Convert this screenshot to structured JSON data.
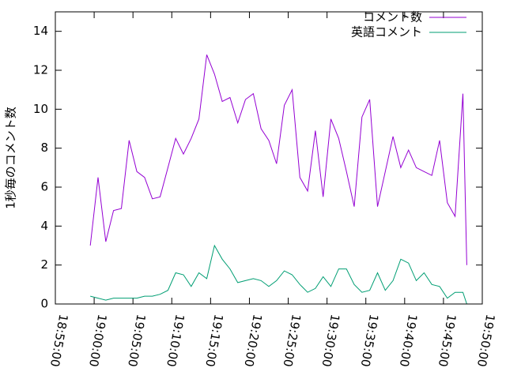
{
  "chart_data": {
    "type": "line",
    "ylabel": "1秒毎のコメント数",
    "x": [
      "18:59:30",
      "19:00:30",
      "19:01:30",
      "19:02:30",
      "19:03:30",
      "19:04:30",
      "19:05:30",
      "19:06:30",
      "19:07:30",
      "19:08:30",
      "19:09:30",
      "19:10:30",
      "19:11:30",
      "19:12:30",
      "19:13:30",
      "19:14:30",
      "19:15:30",
      "19:16:30",
      "19:17:30",
      "19:18:30",
      "19:19:30",
      "19:20:30",
      "19:21:30",
      "19:22:30",
      "19:23:30",
      "19:24:30",
      "19:25:30",
      "19:26:30",
      "19:27:30",
      "19:28:30",
      "19:29:30",
      "19:30:30",
      "19:31:30",
      "19:32:30",
      "19:33:30",
      "19:34:30",
      "19:35:30",
      "19:36:30",
      "19:37:30",
      "19:38:30",
      "19:39:30",
      "19:40:30",
      "19:41:30",
      "19:42:30",
      "19:43:30",
      "19:44:30",
      "19:45:30",
      "19:46:30",
      "19:47:30",
      "19:48:00"
    ],
    "series": [
      {
        "name": "コメント数",
        "color": "#9400d3",
        "values": [
          3.0,
          6.5,
          3.2,
          4.8,
          4.9,
          8.4,
          6.8,
          6.5,
          5.4,
          5.5,
          7.0,
          8.5,
          7.7,
          8.5,
          9.5,
          12.8,
          11.8,
          10.4,
          10.6,
          9.3,
          10.5,
          10.8,
          9.0,
          8.4,
          7.2,
          10.2,
          11.0,
          6.5,
          5.8,
          8.9,
          5.5,
          9.5,
          8.5,
          6.8,
          5.0,
          9.6,
          10.5,
          5.0,
          6.8,
          8.6,
          7.0,
          7.9,
          7.0,
          6.8,
          6.6,
          8.4,
          5.2,
          4.5,
          10.8,
          2.0
        ]
      },
      {
        "name": "英語コメント",
        "color": "#009e73",
        "values": [
          0.4,
          0.3,
          0.2,
          0.3,
          0.3,
          0.3,
          0.3,
          0.4,
          0.4,
          0.5,
          0.7,
          1.6,
          1.5,
          0.9,
          1.6,
          1.3,
          3.0,
          2.3,
          1.8,
          1.1,
          1.2,
          1.3,
          1.2,
          0.9,
          1.2,
          1.7,
          1.5,
          1.0,
          0.6,
          0.8,
          1.4,
          0.9,
          1.8,
          1.8,
          1.0,
          0.6,
          0.7,
          1.6,
          0.7,
          1.2,
          2.3,
          2.1,
          1.2,
          1.6,
          1.0,
          0.9,
          0.3,
          0.6,
          0.6,
          0.0
        ]
      }
    ],
    "xlim": [
      "18:55:00",
      "19:50:00"
    ],
    "xticks": [
      "18:55:00",
      "19:00:00",
      "19:05:00",
      "19:10:00",
      "19:15:00",
      "19:20:00",
      "19:25:00",
      "19:30:00",
      "19:35:00",
      "19:40:00",
      "19:45:00",
      "19:50:00"
    ],
    "ylim": [
      0,
      15
    ],
    "yticks": [
      0,
      2,
      4,
      6,
      8,
      10,
      12,
      14
    ],
    "legend": "top-right"
  }
}
